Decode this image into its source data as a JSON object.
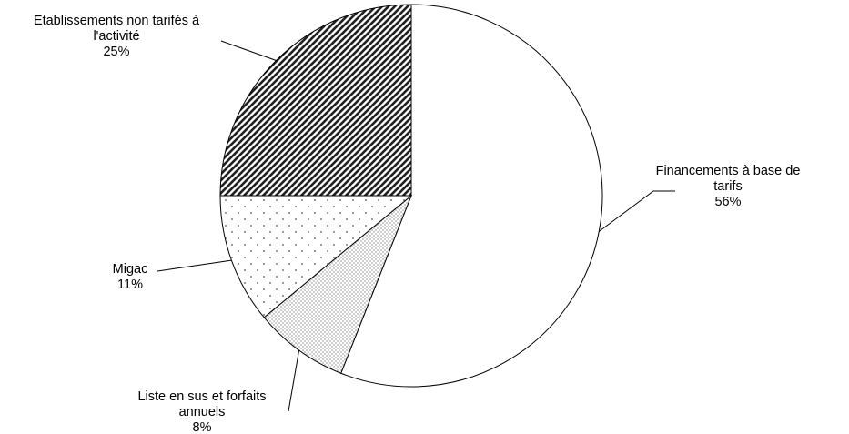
{
  "chart_data": {
    "type": "pie",
    "title": "",
    "start_angle_deg": 0,
    "direction": "clockwise",
    "legend": "none",
    "slices": [
      {
        "label": "Financements à base de tarifs",
        "label_lines": [
          "Financements à base de",
          "tarifs"
        ],
        "value": 56,
        "value_label": "56%",
        "fill": "white",
        "fill_color": "#ffffff"
      },
      {
        "label": "Liste en sus et forfaits annuels",
        "label_lines": [
          "Liste en sus et forfaits",
          "annuels"
        ],
        "value": 8,
        "value_label": "8%",
        "fill": "fine-dots",
        "fill_color": "#666666"
      },
      {
        "label": "Migac",
        "label_lines": [
          "Migac"
        ],
        "value": 11,
        "value_label": "11%",
        "fill": "sparse-dots",
        "fill_color": "#555555"
      },
      {
        "label": "Etablissements non tarifés à l'activité",
        "label_lines": [
          "Etablissements non tarifés à",
          "l'activité"
        ],
        "value": 25,
        "value_label": "25%",
        "fill": "diagonal-hatch",
        "fill_color": "#222222"
      }
    ]
  }
}
